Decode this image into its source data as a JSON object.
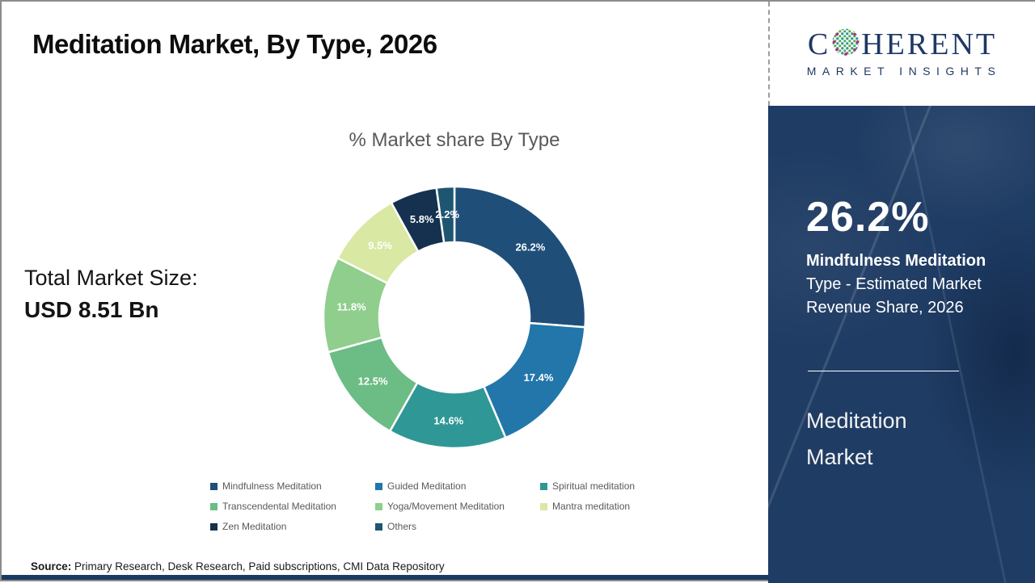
{
  "header": {
    "title": "Meditation Market, By Type, 2026"
  },
  "logo": {
    "part1": "C",
    "part2": "HERENT",
    "subtitle": "MARKET INSIGHTS",
    "brand_color": "#1F3864",
    "dot_colors": [
      "#2E9B98",
      "#5BA845",
      "#C0267E"
    ]
  },
  "left": {
    "total_label": "Total Market Size:",
    "total_value": "USD 8.51 Bn",
    "source_label": "Source:",
    "source_text": " Primary Research, Desk Research, Paid subscriptions, CMI Data Repository"
  },
  "chart_data": {
    "type": "pie",
    "subtype": "donut",
    "title": "% Market share By Type",
    "start_angle_deg": 0,
    "direction": "clockwise",
    "categories": [
      "Mindfulness Meditation",
      "Guided Meditation",
      "Spiritual meditation",
      "Transcendental Meditation",
      "Yoga/Movement Meditation",
      "Mantra meditation",
      "Zen Meditation",
      "Others"
    ],
    "values": [
      26.2,
      17.4,
      14.6,
      12.5,
      11.8,
      9.5,
      5.8,
      2.2
    ],
    "labels": [
      "26.2%",
      "17.4%",
      "14.6%",
      "12.5%",
      "11.8%",
      "9.5%",
      "5.8%",
      "2.2%"
    ],
    "colors": [
      "#1F4E79",
      "#2276A9",
      "#2F9795",
      "#6CBC85",
      "#8FCE8C",
      "#D9E8A2",
      "#16304F",
      "#1E5672"
    ],
    "legend_position": "bottom",
    "units": "%"
  },
  "sidebar": {
    "stat_value": "26.2%",
    "stat_bold": "Mindfulness Meditation",
    "stat_rest": " Type - Estimated Market Revenue Share, 2026",
    "panel_title_line1": "Meditation",
    "panel_title_line2": "Market",
    "bg_color": "#1F3C64"
  }
}
